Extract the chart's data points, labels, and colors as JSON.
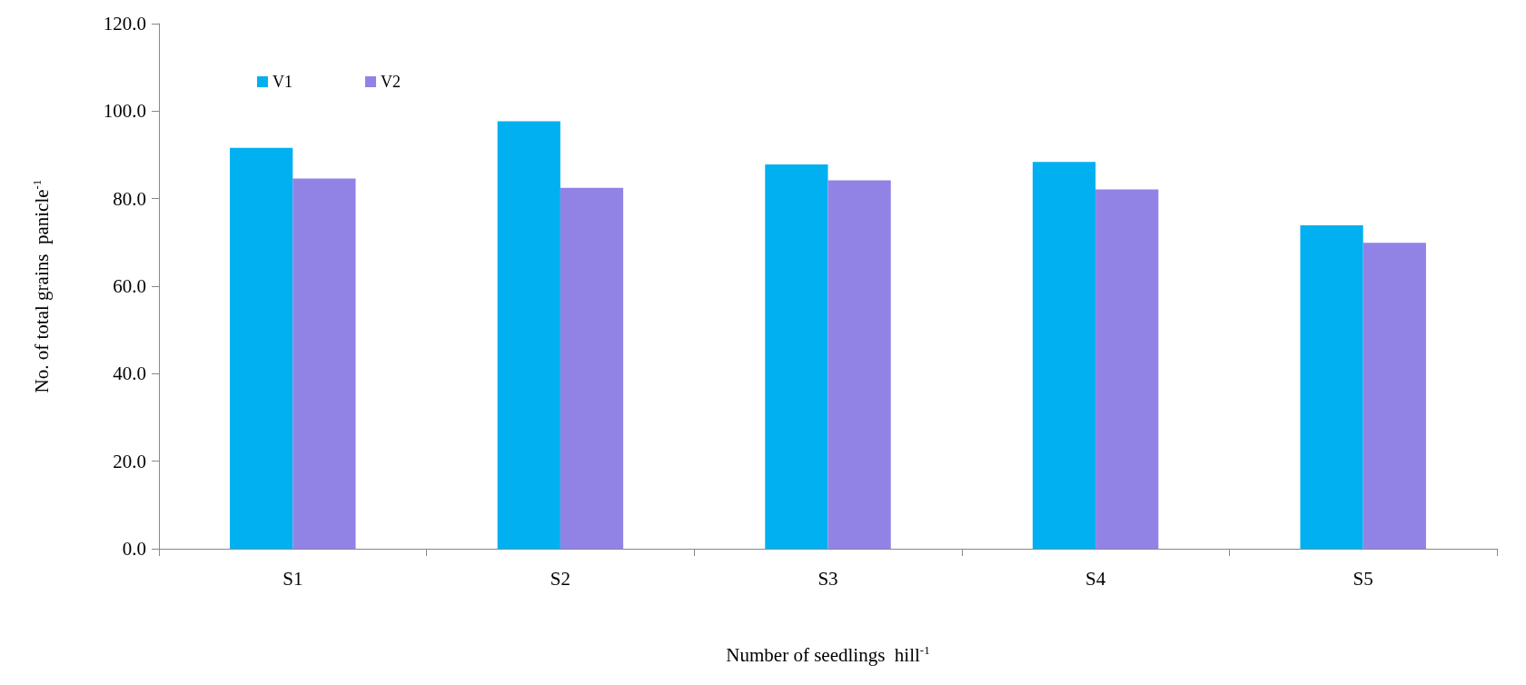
{
  "chart_data": {
    "type": "bar",
    "xlabel": "Number of seedlings  hill$^{-1}$",
    "ylabel": "No. of total grains  panicle$^{-1}$",
    "categories": [
      "S1",
      "S2",
      "S3",
      "S4",
      "S5"
    ],
    "series": [
      {
        "name": "V1",
        "color": "#00b0f0",
        "values": [
          91.6,
          97.7,
          87.8,
          88.4,
          73.9
        ]
      },
      {
        "name": "V2",
        "color": "#9183e6",
        "values": [
          84.6,
          82.5,
          84.2,
          82.1,
          69.9
        ]
      }
    ],
    "ylim": [
      0,
      120
    ],
    "yticks": [
      {
        "value": 0,
        "label": "0.0"
      },
      {
        "value": 20,
        "label": "20.0"
      },
      {
        "value": 40,
        "label": "40.0"
      },
      {
        "value": 60,
        "label": "60.0"
      },
      {
        "value": 80,
        "label": "80.0"
      },
      {
        "value": 100,
        "label": "100.0"
      },
      {
        "value": 120,
        "label": "120.0"
      }
    ],
    "grid": false,
    "legend": "top left"
  }
}
